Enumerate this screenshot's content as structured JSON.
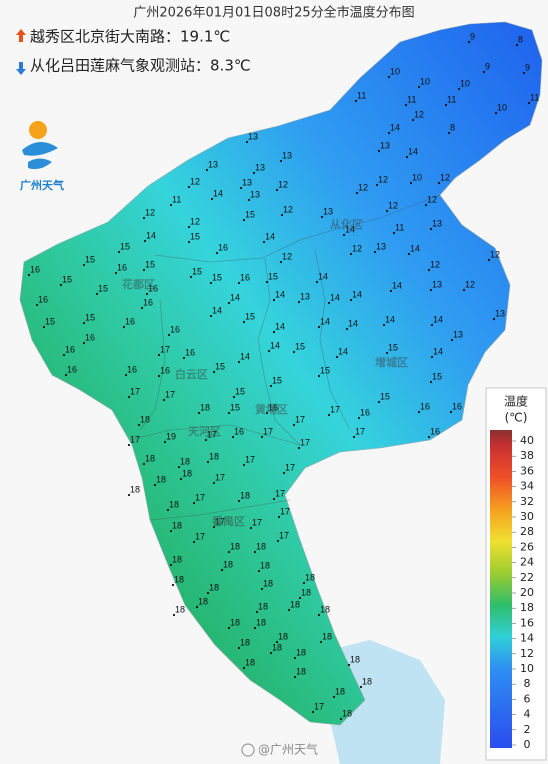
{
  "header": {
    "title": "广州2026年01月01日08时25分全市温度分布图",
    "max_station": "越秀区北京街大南路：19.1℃",
    "min_station": "从化吕田莲麻气象观测站：8.3℃"
  },
  "logo": "广州天气",
  "districts": [
    "从化区",
    "花都区",
    "白云区",
    "增城区",
    "黄埔区",
    "天河区",
    "番禺区"
  ],
  "station_temps": [
    9,
    8,
    9,
    9,
    10,
    10,
    10,
    11,
    11,
    11,
    10,
    11,
    12,
    14,
    8,
    13,
    14,
    13,
    13,
    13,
    13,
    12,
    13,
    12,
    12,
    10,
    12,
    11,
    14,
    13,
    12,
    12,
    12,
    15,
    12,
    13,
    12,
    12,
    14,
    15,
    16,
    14,
    14,
    11,
    13,
    15,
    12,
    12,
    13,
    14,
    16,
    15,
    15,
    15,
    16,
    15,
    14,
    12,
    12,
    15,
    16,
    16,
    15,
    13,
    14,
    14,
    14,
    13,
    12,
    16,
    15,
    16,
    14,
    14,
    15,
    14,
    14,
    14,
    14,
    13,
    15,
    15,
    16,
    16,
    14,
    14,
    13,
    16,
    16,
    17,
    16,
    14,
    14,
    15,
    14,
    15,
    14,
    16,
    16,
    16,
    15,
    15,
    15,
    15,
    17,
    17,
    15,
    15,
    16,
    18,
    18,
    15,
    16,
    17,
    17,
    16,
    16,
    17,
    19,
    17,
    16,
    17,
    17,
    17,
    16,
    18,
    18,
    18,
    17,
    18,
    18,
    17,
    17,
    18,
    17,
    18,
    17,
    18,
    17,
    17,
    18,
    17,
    17,
    17,
    18,
    18,
    18,
    18,
    18,
    18,
    18,
    18,
    18,
    18,
    18,
    18,
    18,
    18,
    18,
    18,
    18,
    18,
    18,
    18,
    18,
    18,
    18,
    18,
    18,
    18,
    18,
    17,
    18
  ],
  "legend": {
    "title": "温度",
    "unit": "(℃)",
    "ticks": [
      40,
      38,
      36,
      34,
      32,
      30,
      28,
      26,
      24,
      22,
      20,
      18,
      16,
      14,
      12,
      10,
      8,
      6,
      4,
      2,
      0
    ]
  },
  "watermark": "@广州天气"
}
